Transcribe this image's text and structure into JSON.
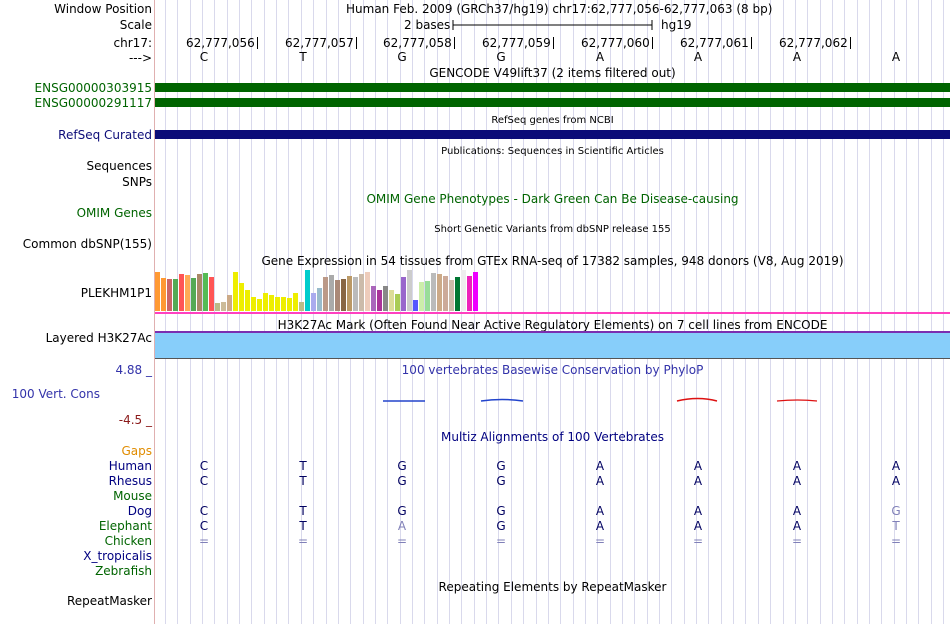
{
  "header": {
    "window_position_label": "Window Position",
    "window_position_value": "Human Feb. 2009 (GRCh37/hg19)   chr17:62,777,056-62,777,063 (8 bp)",
    "scale_label": "Scale",
    "scale_value": "2 bases",
    "scale_assembly": "hg19",
    "chrom_label": "chr17:",
    "strand_label": "--->"
  },
  "ruler": {
    "positions": [
      "62,777,056",
      "62,777,057",
      "62,777,058",
      "62,777,059",
      "62,777,060",
      "62,777,061",
      "62,777,062"
    ]
  },
  "sequence": [
    "C",
    "T",
    "G",
    "G",
    "A",
    "A",
    "A",
    "A"
  ],
  "tracks": {
    "gencode_title": "GENCODE V49lift37 (2 items filtered out)",
    "gencode_items": [
      "ENSG00000303915",
      "ENSG00000291117"
    ],
    "refseq_title": "RefSeq genes from NCBI",
    "refseq_label": "RefSeq Curated",
    "publications_title": "Publications: Sequences in Scientific Articles",
    "sequences_label": "Sequences",
    "snps_label": "SNPs",
    "omim_title": "OMIM Gene Phenotypes - Dark Green Can Be Disease-causing",
    "omim_label": "OMIM Genes",
    "dbsnp_title": "Short Genetic Variants from dbSNP release 155",
    "dbsnp_label": "Common dbSNP(155)",
    "gtex_title": "Gene Expression in 54 tissues from GTEx RNA-seq of 17382 samples, 948 donors (V8, Aug 2019)",
    "gtex_label": "PLEKHM1P1",
    "h3k27ac_title": "H3K27Ac Mark (Often Found Near Active Regulatory Elements) on 7 cell lines from ENCODE",
    "h3k27ac_label": "Layered H3K27Ac",
    "phylop_title": "100 vertebrates Basewise Conservation by PhyloP",
    "phylop_label": "100 Vert. Cons",
    "phylop_max": "4.88 _",
    "phylop_min": "-4.5 _",
    "multiz_title": "Multiz Alignments of 100 Vertebrates",
    "gaps_label": "Gaps",
    "repeat_title": "Repeating Elements by RepeatMasker",
    "repeat_label": "RepeatMasker"
  },
  "gtex_bars": {
    "values": [
      0.95,
      0.8,
      0.78,
      0.78,
      0.9,
      0.88,
      0.8,
      0.9,
      0.92,
      0.82,
      0.2,
      0.22,
      0.4,
      0.95,
      0.68,
      0.5,
      0.35,
      0.3,
      0.45,
      0.38,
      0.35,
      0.34,
      0.32,
      0.45,
      0.22,
      1.0,
      0.45,
      0.55,
      0.82,
      0.88,
      0.75,
      0.78,
      0.85,
      0.82,
      0.9,
      0.95,
      0.6,
      0.5,
      0.6,
      0.5,
      0.42,
      0.82,
      1.0,
      0.28,
      0.7,
      0.72,
      0.92,
      0.9,
      0.85,
      0.75,
      0.82,
      1.0,
      0.85,
      0.95
    ],
    "colors": [
      "#ff9933",
      "#ff9933",
      "#cc6666",
      "#55aa55",
      "#ff5555",
      "#ffaa55",
      "#55aa55",
      "#aa8866",
      "#55bb55",
      "#ff5555",
      "#bbbb88",
      "#ccbb99",
      "#ccaa88",
      "#eeee00",
      "#eeee00",
      "#eeee00",
      "#eeee00",
      "#eeee00",
      "#eeee00",
      "#eeee00",
      "#eeee00",
      "#eeee00",
      "#eeee00",
      "#eeee00",
      "#bbbb88",
      "#00cccc",
      "#aaaaee",
      "#99bbcc",
      "#bb9988",
      "#aaaaaa",
      "#aa8877",
      "#886644",
      "#bb9966",
      "#bbbbbb",
      "#ccbbaa",
      "#eeccbb",
      "#aa66bb",
      "#aa3399",
      "#888888",
      "#dddd99",
      "#aacc55",
      "#9966cc",
      "#cccccc",
      "#5555ff",
      "#cceeaa",
      "#99dd99",
      "#bbbbbb",
      "#ccaa88",
      "#ccaa99",
      "#ccbbaa",
      "#007733",
      "#eeeeee",
      "#ee22bb",
      "#ee00ff"
    ]
  },
  "multiz": {
    "species": [
      {
        "name": "Human",
        "color": "#000080",
        "bases": [
          "C",
          "T",
          "G",
          "G",
          "A",
          "A",
          "A",
          "A"
        ]
      },
      {
        "name": "Rhesus",
        "color": "#000080",
        "bases": [
          "C",
          "T",
          "G",
          "G",
          "A",
          "A",
          "A",
          "A"
        ]
      },
      {
        "name": "Mouse",
        "color": "#006400",
        "bases": [
          "",
          "",
          "",
          "",
          "",
          "",
          "",
          ""
        ]
      },
      {
        "name": "Dog",
        "color": "#000080",
        "bases": [
          "C",
          "T",
          "G",
          "G",
          "A",
          "A",
          "A",
          "G"
        ]
      },
      {
        "name": "Elephant",
        "color": "#006400",
        "bases": [
          "C",
          "T",
          "A",
          "G",
          "A",
          "A",
          "A",
          "T"
        ]
      },
      {
        "name": "Chicken",
        "color": "#006400",
        "bases": [
          "=",
          "=",
          "=",
          "=",
          "=",
          "=",
          "=",
          "="
        ]
      },
      {
        "name": "X_tropicalis",
        "color": "#000080",
        "bases": [
          "",
          "",
          "",
          "",
          "",
          "",
          "",
          ""
        ]
      },
      {
        "name": "Zebrafish",
        "color": "#006400",
        "bases": [
          "",
          "",
          "",
          "",
          "",
          "",
          "",
          ""
        ]
      }
    ],
    "faded": [
      [
        false,
        false,
        false,
        false,
        false,
        false,
        false,
        false
      ],
      [
        false,
        false,
        false,
        false,
        false,
        false,
        false,
        false
      ],
      [
        false,
        false,
        false,
        false,
        false,
        false,
        false,
        false
      ],
      [
        false,
        false,
        false,
        false,
        false,
        false,
        false,
        true
      ],
      [
        false,
        false,
        true,
        false,
        false,
        false,
        false,
        true
      ],
      [
        true,
        true,
        true,
        true,
        true,
        true,
        true,
        true
      ],
      [
        false,
        false,
        false,
        false,
        false,
        false,
        false,
        false
      ],
      [
        false,
        false,
        false,
        false,
        false,
        false,
        false,
        false
      ]
    ]
  },
  "colors": {
    "gencode": "#006400",
    "refseq": "#0c0c78",
    "h3k27ac_fill": "#87cefa",
    "h3k27ac_border": "#7b2fb0",
    "pink_line": "#ff40c0",
    "phylop_label": "#3333aa",
    "phylop_min": "#8b1a1a",
    "gaps": "#e08c00"
  }
}
